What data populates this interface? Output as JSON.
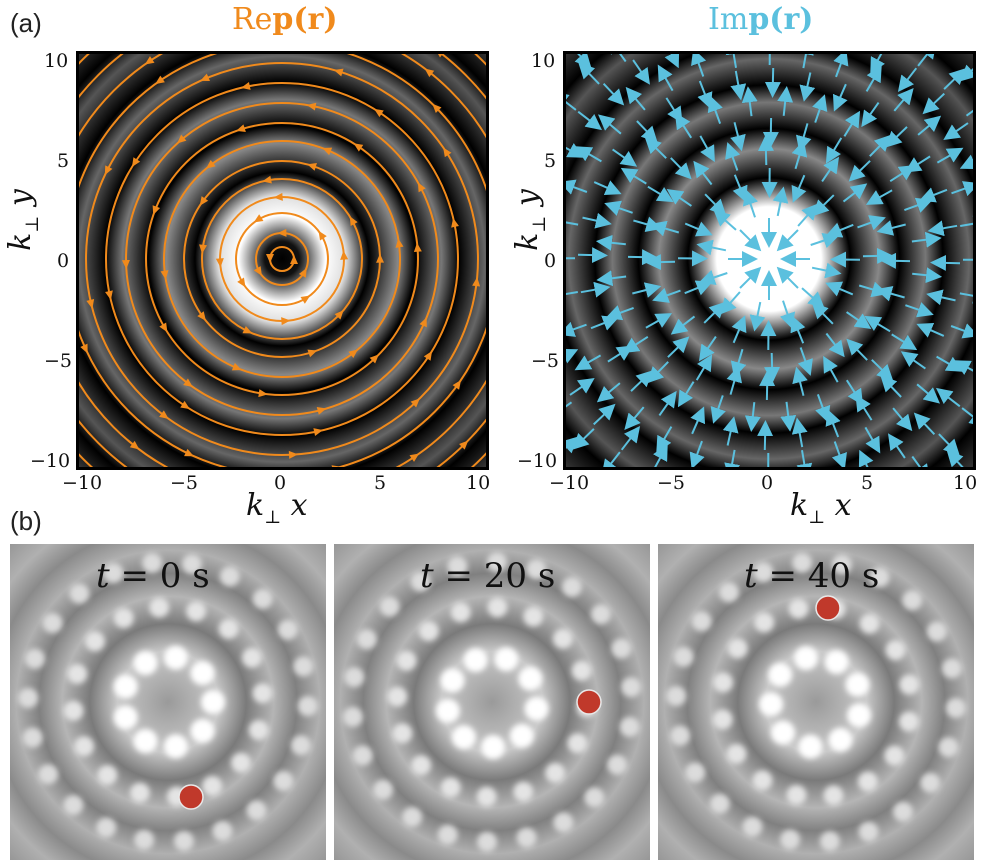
{
  "labels": {
    "a": "(a)",
    "b": "(b)"
  },
  "panel_a": {
    "left": {
      "title_prefix": "Re",
      "title_main": "p",
      "title_arg": "(r)",
      "color": "#f08a1c",
      "xlabel_k": "k",
      "xlabel_sub": "⊥",
      "xlabel_var": "x",
      "ylabel_k": "k",
      "ylabel_sub": "⊥",
      "ylabel_var": "y",
      "xticks": [
        "−10",
        "−5",
        "0",
        "5",
        "10"
      ],
      "yticks": [
        "10",
        "5",
        "0",
        "−5",
        "−10"
      ]
    },
    "right": {
      "title_prefix": "Im",
      "title_main": "p",
      "title_arg": "(r)",
      "color": "#5bc0de",
      "xlabel_k": "k",
      "xlabel_sub": "⊥",
      "xlabel_var": "x",
      "ylabel_k": "k",
      "ylabel_sub": "⊥",
      "ylabel_var": "y",
      "xticks": [
        "−10",
        "−5",
        "0",
        "5",
        "10"
      ],
      "yticks": [
        "10",
        "5",
        "0",
        "−5",
        "−10"
      ]
    }
  },
  "panel_b": {
    "frames": [
      {
        "t_var": "t",
        "t_eq": "= 0 s"
      },
      {
        "t_var": "t",
        "t_eq": "= 20 s"
      },
      {
        "t_var": "t",
        "t_eq": "= 40 s"
      }
    ],
    "dot_color": "#c0392b"
  }
}
